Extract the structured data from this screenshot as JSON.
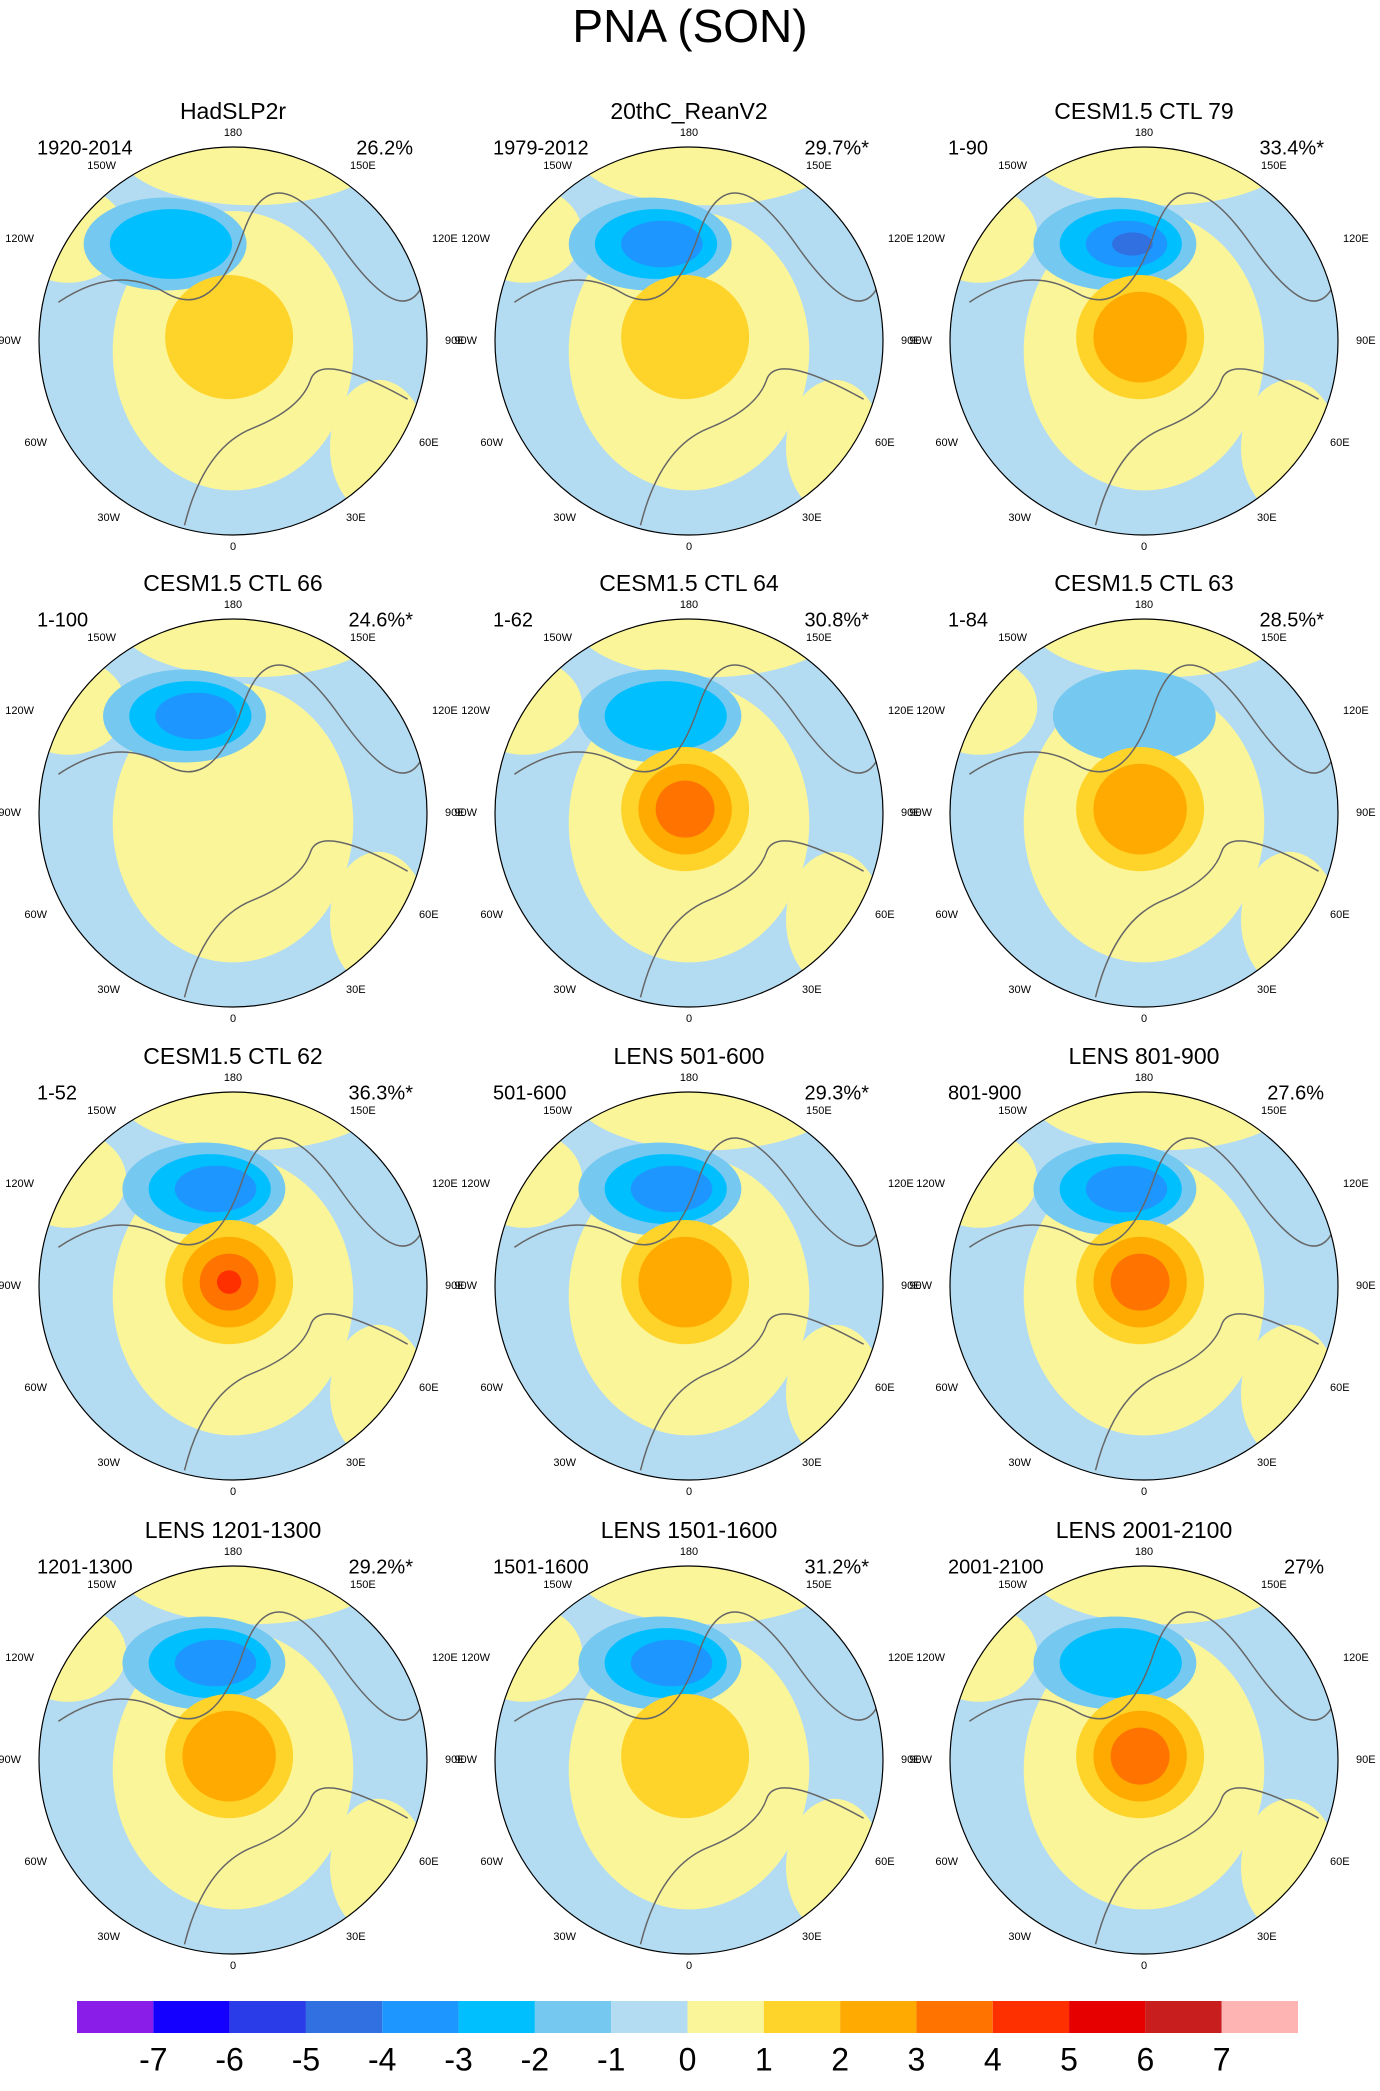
{
  "header": {
    "title": "PNA (SON)"
  },
  "longitude_labels": {
    "top": "180",
    "w150": "150W",
    "e150": "150E",
    "w120": "120W",
    "e120": "120E",
    "w90": "90W",
    "e90": "90E",
    "w60": "60W",
    "e60": "60E",
    "w30": "30W",
    "e30": "30E",
    "bottom": "0"
  },
  "panels": [
    {
      "title": "HadSLP2r",
      "period": "1920-2014",
      "variance": "26.2%"
    },
    {
      "title": "20thC_ReanV2",
      "period": "1979-2012",
      "variance": "29.7%*"
    },
    {
      "title": "CESM1.5 CTL 79",
      "period": "1-90",
      "variance": "33.4%*"
    },
    {
      "title": "CESM1.5 CTL 66",
      "period": "1-100",
      "variance": "24.6%*"
    },
    {
      "title": "CESM1.5 CTL 64",
      "period": "1-62",
      "variance": "30.8%*"
    },
    {
      "title": "CESM1.5 CTL 63",
      "period": "1-84",
      "variance": "28.5%*"
    },
    {
      "title": "CESM1.5 CTL 62",
      "period": "1-52",
      "variance": "36.3%*"
    },
    {
      "title": "LENS 501-600",
      "period": "501-600",
      "variance": "29.3%*"
    },
    {
      "title": "LENS 801-900",
      "period": "801-900",
      "variance": "27.6%"
    },
    {
      "title": "LENS 1201-1300",
      "period": "1201-1300",
      "variance": "29.2%*"
    },
    {
      "title": "LENS 1501-1600",
      "period": "1501-1600",
      "variance": "31.2%*"
    },
    {
      "title": "LENS 2001-2100",
      "period": "2001-2100",
      "variance": "27%"
    }
  ],
  "colorbar": {
    "levels": [
      -7,
      -6,
      -5,
      -4,
      -3,
      -2,
      -1,
      0,
      1,
      2,
      3,
      4,
      5,
      6,
      7
    ],
    "colors": [
      "#8a1ee8",
      "#1400ff",
      "#2a3ce8",
      "#3070e0",
      "#1e96ff",
      "#00bfff",
      "#75c8f0",
      "#b3dcf2",
      "#fbf59a",
      "#ffd42a",
      "#ffaa00",
      "#ff7300",
      "#ff3000",
      "#e60000",
      "#c81e1e",
      "#ffb4b4"
    ]
  }
}
